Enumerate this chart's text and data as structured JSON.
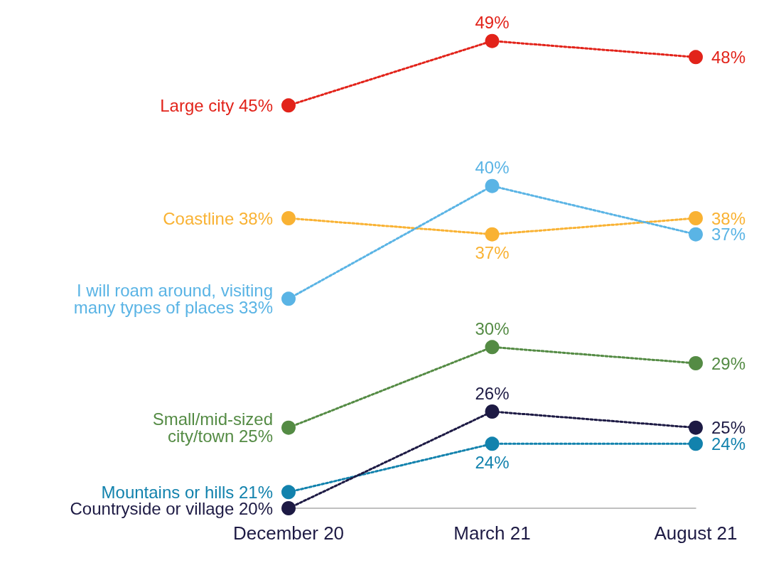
{
  "chart_data": {
    "type": "line",
    "categories": [
      "December 20",
      "March 21",
      "August 21"
    ],
    "tick_labels": "x",
    "legend": false,
    "grid": false,
    "marker": "circle",
    "line_style": "dotted",
    "series": [
      {
        "name": "Large city",
        "color": "#e2231a",
        "values": [
          45,
          49,
          48
        ],
        "value_labels": [
          "45%",
          "49%",
          "48%"
        ]
      },
      {
        "name": "Coastline",
        "color": "#f9b233",
        "values": [
          38,
          37,
          38
        ],
        "value_labels": [
          "38%",
          "37%",
          "38%"
        ]
      },
      {
        "name": "I will roam around, visiting\nmany types of places",
        "color": "#5ab4e5",
        "values": [
          33,
          40,
          37
        ],
        "value_labels": [
          "33%",
          "40%",
          "37%"
        ]
      },
      {
        "name": "Small/mid-sized\ncity/town",
        "color": "#548b44",
        "values": [
          25,
          30,
          29
        ],
        "value_labels": [
          "25%",
          "30%",
          "29%"
        ]
      },
      {
        "name": "Mountains or hills",
        "color": "#1282ad",
        "values": [
          21,
          24,
          24
        ],
        "value_labels": [
          "21%",
          "24%",
          "24%"
        ]
      },
      {
        "name": "Countryside or village",
        "color": "#1d1a44",
        "values": [
          20,
          26,
          25
        ],
        "value_labels": [
          "20%",
          "26%",
          "25%"
        ]
      }
    ]
  }
}
